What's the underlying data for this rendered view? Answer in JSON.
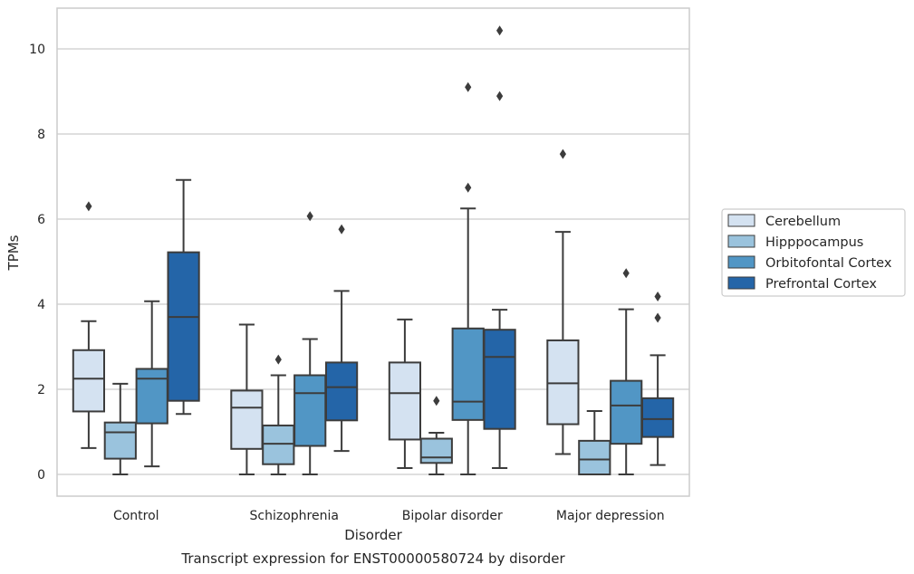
{
  "chart_data": {
    "type": "box",
    "caption": "Transcript expression for ENST00000580724 by disorder",
    "xlabel": "Disorder",
    "ylabel": "TPMs",
    "ylim": [
      -0.5,
      10.95
    ],
    "yticks": [
      0,
      2,
      4,
      6,
      8,
      10
    ],
    "grid": true,
    "legend_position": "right",
    "categories": [
      "Control",
      "Schizophrenia",
      "Bipolar disorder",
      "Major depression"
    ],
    "series": [
      {
        "name": "Cerebellum",
        "color": "#d4e2f1",
        "boxes": [
          {
            "whisker_low": 0.62,
            "q1": 1.48,
            "median": 2.25,
            "q3": 2.92,
            "whisker_high": 3.6,
            "outliers": [
              6.3
            ]
          },
          {
            "whisker_low": 0.0,
            "q1": 0.6,
            "median": 1.57,
            "q3": 1.97,
            "whisker_high": 3.52,
            "outliers": []
          },
          {
            "whisker_low": 0.15,
            "q1": 0.82,
            "median": 1.91,
            "q3": 2.63,
            "whisker_high": 3.64,
            "outliers": []
          },
          {
            "whisker_low": 0.48,
            "q1": 1.18,
            "median": 2.14,
            "q3": 3.15,
            "whisker_high": 5.7,
            "outliers": [
              7.53
            ]
          }
        ]
      },
      {
        "name": "Hipppocampus",
        "color": "#9ac3dd",
        "boxes": [
          {
            "whisker_low": 0.0,
            "q1": 0.37,
            "median": 0.99,
            "q3": 1.22,
            "whisker_high": 2.13,
            "outliers": []
          },
          {
            "whisker_low": 0.0,
            "q1": 0.24,
            "median": 0.72,
            "q3": 1.15,
            "whisker_high": 2.33,
            "outliers": [
              2.7
            ]
          },
          {
            "whisker_low": 0.0,
            "q1": 0.27,
            "median": 0.4,
            "q3": 0.84,
            "whisker_high": 0.98,
            "outliers": [
              1.73
            ]
          },
          {
            "whisker_low": 0.0,
            "q1": 0.0,
            "median": 0.35,
            "q3": 0.79,
            "whisker_high": 1.49,
            "outliers": []
          }
        ]
      },
      {
        "name": "Orbitofontal Cortex",
        "color": "#5196c5",
        "boxes": [
          {
            "whisker_low": 0.19,
            "q1": 1.2,
            "median": 2.25,
            "q3": 2.48,
            "whisker_high": 4.07,
            "outliers": []
          },
          {
            "whisker_low": 0.0,
            "q1": 0.67,
            "median": 1.91,
            "q3": 2.33,
            "whisker_high": 3.18,
            "outliers": [
              6.07
            ]
          },
          {
            "whisker_low": 0.0,
            "q1": 1.28,
            "median": 1.71,
            "q3": 3.43,
            "whisker_high": 6.25,
            "outliers": [
              6.74,
              9.1
            ]
          },
          {
            "whisker_low": 0.0,
            "q1": 0.72,
            "median": 1.62,
            "q3": 2.2,
            "whisker_high": 3.88,
            "outliers": [
              4.73
            ]
          }
        ]
      },
      {
        "name": "Prefrontal Cortex",
        "color": "#2465a8",
        "boxes": [
          {
            "whisker_low": 1.42,
            "q1": 1.73,
            "median": 3.7,
            "q3": 5.22,
            "whisker_high": 6.92,
            "outliers": []
          },
          {
            "whisker_low": 0.55,
            "q1": 1.27,
            "median": 2.05,
            "q3": 2.63,
            "whisker_high": 4.31,
            "outliers": [
              5.76
            ]
          },
          {
            "whisker_low": 0.15,
            "q1": 1.07,
            "median": 2.76,
            "q3": 3.4,
            "whisker_high": 3.87,
            "outliers": [
              8.89,
              10.43
            ]
          },
          {
            "whisker_low": 0.22,
            "q1": 0.88,
            "median": 1.3,
            "q3": 1.79,
            "whisker_high": 2.8,
            "outliers": [
              3.68,
              4.18
            ]
          }
        ]
      }
    ]
  }
}
